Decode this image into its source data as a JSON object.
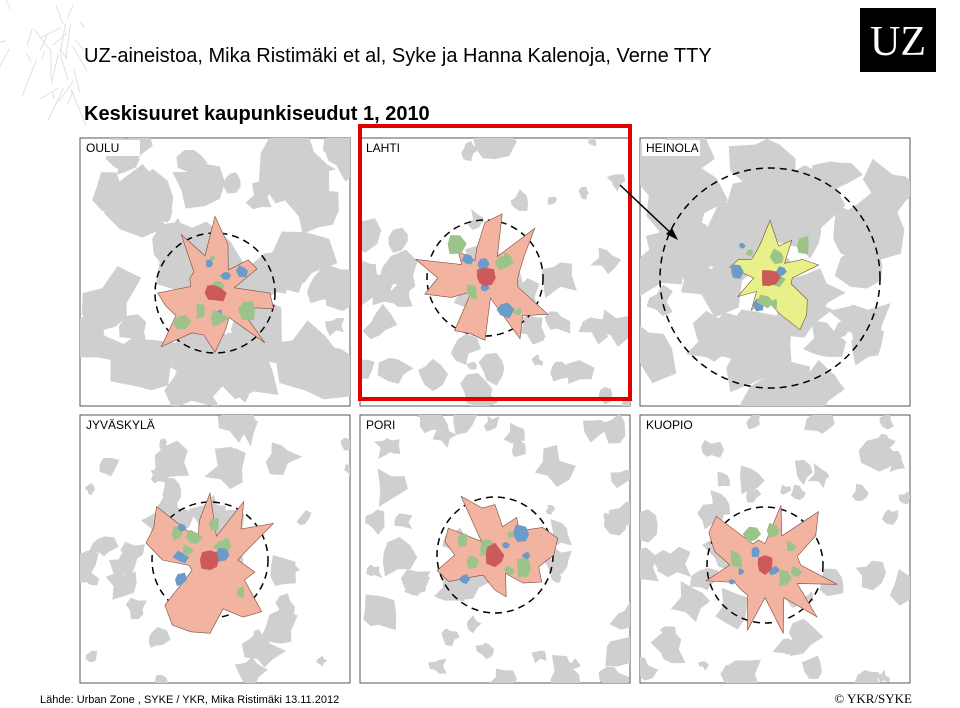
{
  "header": {
    "text": "UZ-aineistoa, Mika Ristimäki et al, Syke ja Hanna Kalenoja, Verne TTY",
    "logo": "UZ"
  },
  "title": "Keskisuuret kaupunkiseudut 1, 2010",
  "panels": [
    {
      "label": "OULU"
    },
    {
      "label": "LAHTI"
    },
    {
      "label": "HEINOLA"
    },
    {
      "label": "JYVÄSKYLÄ"
    },
    {
      "label": "PORI"
    },
    {
      "label": "KUOPIO"
    }
  ],
  "footer": {
    "source": "Lähde:  Urban Zone , SYKE / YKR, Mika Ristimäki  13.11.2012",
    "copyright": "© YKR/SYKE"
  }
}
